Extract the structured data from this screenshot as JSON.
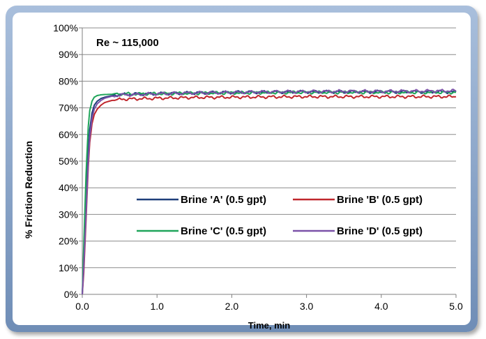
{
  "chart_data": {
    "type": "line",
    "title": "",
    "xlabel": "Time, min",
    "ylabel": "% Friction Reduction",
    "xlim": [
      0,
      5
    ],
    "ylim": [
      0,
      100
    ],
    "x_ticks": [
      "0.0",
      "1.0",
      "2.0",
      "3.0",
      "4.0",
      "5.0"
    ],
    "y_ticks": [
      "0%",
      "10%",
      "20%",
      "30%",
      "40%",
      "50%",
      "60%",
      "70%",
      "80%",
      "90%",
      "100%"
    ],
    "grid": "horizontal",
    "annotation": "Re ~ 115,000",
    "legend_position": "center-right",
    "series": [
      {
        "name": "Brine 'A' (0.5 gpt)",
        "color": "#1f3f7a",
        "x": [
          0,
          0.02,
          0.05,
          0.08,
          0.1,
          0.13,
          0.16,
          0.2,
          0.25,
          0.3,
          0.4,
          0.5,
          1.0,
          1.5,
          2.0,
          2.5,
          3.0,
          3.5,
          4.0,
          4.5,
          5.0
        ],
        "y": [
          0,
          12,
          35,
          55,
          62,
          68,
          71,
          72.5,
          73.5,
          74,
          74.6,
          75,
          75.3,
          75.6,
          75.8,
          75.9,
          76,
          76,
          76,
          76,
          76
        ]
      },
      {
        "name": "Brine 'B' (0.5 gpt)",
        "color": "#c0272d",
        "x": [
          0,
          0.02,
          0.05,
          0.08,
          0.1,
          0.13,
          0.16,
          0.2,
          0.25,
          0.3,
          0.4,
          0.5,
          1.0,
          1.5,
          2.0,
          2.5,
          3.0,
          3.5,
          4.0,
          4.5,
          5.0
        ],
        "y": [
          0,
          8,
          28,
          48,
          57,
          64,
          67.5,
          69.5,
          71,
          72,
          72.8,
          73.2,
          73.6,
          73.9,
          74,
          74.1,
          74.2,
          74.2,
          74.2,
          74.2,
          74.2
        ]
      },
      {
        "name": "Brine 'C' (0.5 gpt)",
        "color": "#1fa55a",
        "x": [
          0,
          0.02,
          0.05,
          0.08,
          0.1,
          0.13,
          0.16,
          0.2,
          0.25,
          0.3,
          0.4,
          0.5,
          1.0,
          1.5,
          2.0,
          2.5,
          3.0,
          3.5,
          4.0,
          4.5,
          5.0
        ],
        "y": [
          0,
          18,
          45,
          63,
          69,
          72.5,
          74,
          74.6,
          74.9,
          75,
          75.1,
          75.2,
          75.3,
          75.5,
          75.6,
          75.7,
          75.8,
          75.8,
          75.8,
          75.8,
          75.8
        ]
      },
      {
        "name": "Brine 'D' (0.5 gpt)",
        "color": "#7b52a8",
        "x": [
          0,
          0.02,
          0.05,
          0.08,
          0.1,
          0.13,
          0.16,
          0.2,
          0.25,
          0.3,
          0.4,
          0.5,
          1.0,
          1.5,
          2.0,
          2.5,
          3.0,
          3.5,
          4.0,
          4.5,
          5.0
        ],
        "y": [
          0,
          10,
          30,
          50,
          59,
          66,
          69.5,
          71.5,
          72.8,
          73.6,
          74.4,
          74.8,
          75.3,
          75.6,
          75.8,
          76,
          76.1,
          76.2,
          76.2,
          76.3,
          76.4
        ]
      }
    ]
  }
}
